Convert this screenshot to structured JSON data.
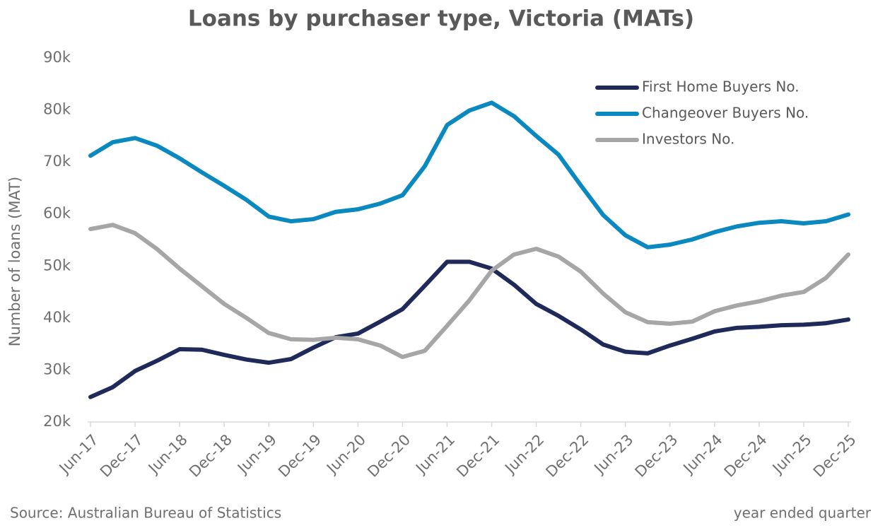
{
  "chart_data": {
    "type": "line",
    "title": "Loans by purchaser type, Victoria (MATs)",
    "y_label": "Number of loans (MAT)",
    "source": "Source: Australian Bureau of Statistics",
    "note": "year ended quarter",
    "categories": [
      "Jun-17",
      null,
      "Dec-17",
      null,
      "Jun-18",
      null,
      "Dec-18",
      null,
      "Jun-19",
      null,
      "Dec-19",
      null,
      "Jun-20",
      null,
      "Dec-20",
      null,
      "Jun-21",
      null,
      "Dec-21",
      null,
      "Jun-22",
      null,
      "Dec-22",
      null,
      "Jun-23",
      null,
      "Dec-23",
      null,
      "Jun-24",
      null,
      "Dec-24",
      null,
      "Jun-25",
      null,
      "Dec-25"
    ],
    "series": [
      {
        "name": "First Home Buyers No.",
        "color": "#1f2a5a",
        "values": [
          24800,
          26700,
          29800,
          31800,
          34000,
          33900,
          32900,
          32000,
          31400,
          32100,
          34300,
          36300,
          37000,
          39300,
          41700,
          46200,
          50800,
          50800,
          49500,
          46400,
          42700,
          40400,
          37800,
          34900,
          33500,
          33200,
          34700,
          36000,
          37400,
          38100,
          38300,
          38600,
          38700,
          39000,
          39700
        ]
      },
      {
        "name": "Changeover Buyers No.",
        "color": "#0a88c0",
        "values": [
          71200,
          73800,
          74600,
          73100,
          70700,
          68000,
          65400,
          62700,
          59500,
          58600,
          59000,
          60400,
          60900,
          62000,
          63600,
          69200,
          77100,
          79900,
          81400,
          78800,
          75000,
          71400,
          65500,
          59800,
          55900,
          53600,
          54100,
          55100,
          56500,
          57600,
          58300,
          58600,
          58200,
          58600,
          59900
        ]
      },
      {
        "name": "Investors No.",
        "color": "#a6a6a6",
        "values": [
          57100,
          57900,
          56300,
          53200,
          49500,
          46100,
          42700,
          40000,
          37100,
          35900,
          35800,
          36200,
          35900,
          34700,
          32500,
          33700,
          38500,
          43400,
          49100,
          52200,
          53300,
          51800,
          48900,
          44700,
          41100,
          39200,
          38900,
          39300,
          41300,
          42400,
          43200,
          44300,
          45000,
          47700,
          52200
        ]
      }
    ],
    "ylim": [
      20000,
      90000
    ],
    "yticks": [
      {
        "value": 20000,
        "label": "20k"
      },
      {
        "value": 30000,
        "label": "30k"
      },
      {
        "value": 40000,
        "label": "40k"
      },
      {
        "value": 50000,
        "label": "50k"
      },
      {
        "value": 60000,
        "label": "60k"
      },
      {
        "value": 70000,
        "label": "70k"
      },
      {
        "value": 80000,
        "label": "80k"
      },
      {
        "value": 90000,
        "label": "90k"
      }
    ],
    "legend": "top-right"
  }
}
